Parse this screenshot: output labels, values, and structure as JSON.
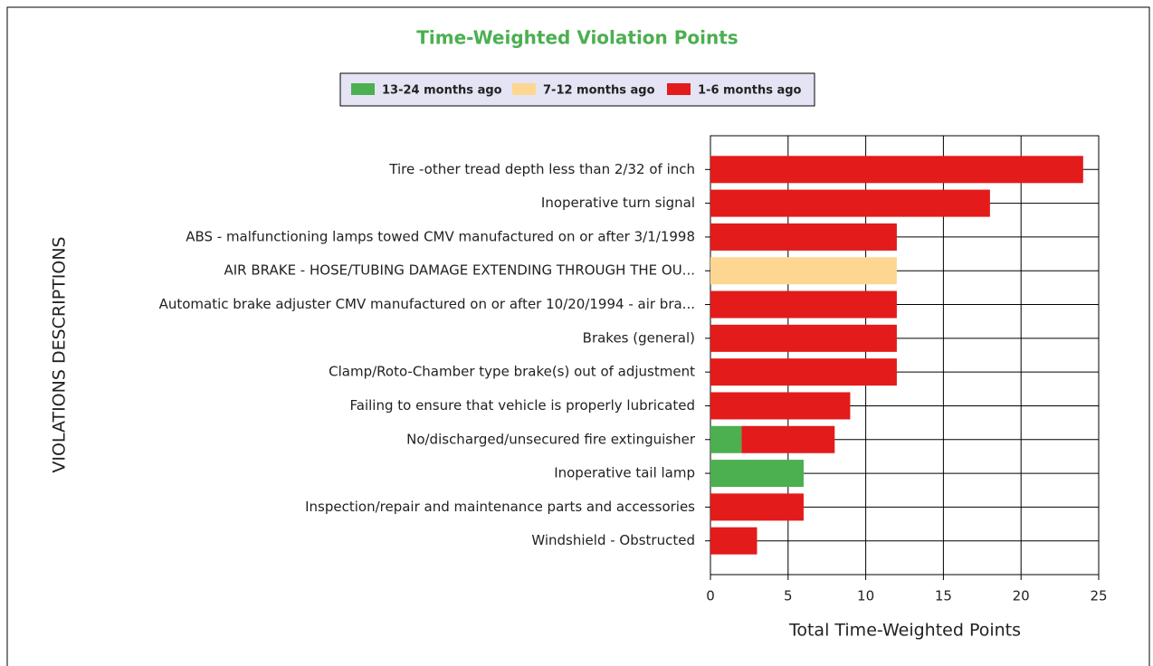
{
  "chart_data": {
    "type": "stacked-barh",
    "title": "Time-Weighted Violation Points",
    "x_label": "Total Time-Weighted Points",
    "y_label": "VIOLATIONS DESCRIPTIONS",
    "categories": [
      "Tire -other tread depth less than 2/32 of inch",
      "Inoperative turn signal",
      "ABS - malfunctioning lamps towed CMV manufactured on or after 3/1/1998",
      "AIR BRAKE - HOSE/TUBING DAMAGE EXTENDING THROUGH THE OU...",
      "Automatic brake adjuster CMV manufactured on or after 10/20/1994 - air bra...",
      "Brakes (general)",
      "Clamp/Roto-Chamber type brake(s) out of adjustment",
      "Failing to ensure that vehicle is properly lubricated",
      "No/discharged/unsecured fire extinguisher",
      "Inoperative tail lamp",
      "Inspection/repair and maintenance parts and accessories",
      "Windshield - Obstructed"
    ],
    "series": [
      {
        "name": "13-24 months ago",
        "color": "#4caf50",
        "values": [
          0,
          0,
          0,
          0,
          0,
          0,
          0,
          0,
          2,
          6,
          0,
          0
        ]
      },
      {
        "name": "7-12 months ago",
        "color": "#fdd792",
        "values": [
          0,
          0,
          0,
          12,
          0,
          0,
          0,
          0,
          0,
          0,
          0,
          0
        ]
      },
      {
        "name": "1-6 months ago",
        "color": "#e31b1b",
        "values": [
          24,
          18,
          12,
          0,
          12,
          12,
          12,
          9,
          6,
          0,
          6,
          3
        ]
      }
    ],
    "xlim": [
      0,
      25
    ],
    "xticks": [
      0,
      5,
      10,
      15,
      20,
      25
    ],
    "grid": true,
    "legend": "top"
  }
}
